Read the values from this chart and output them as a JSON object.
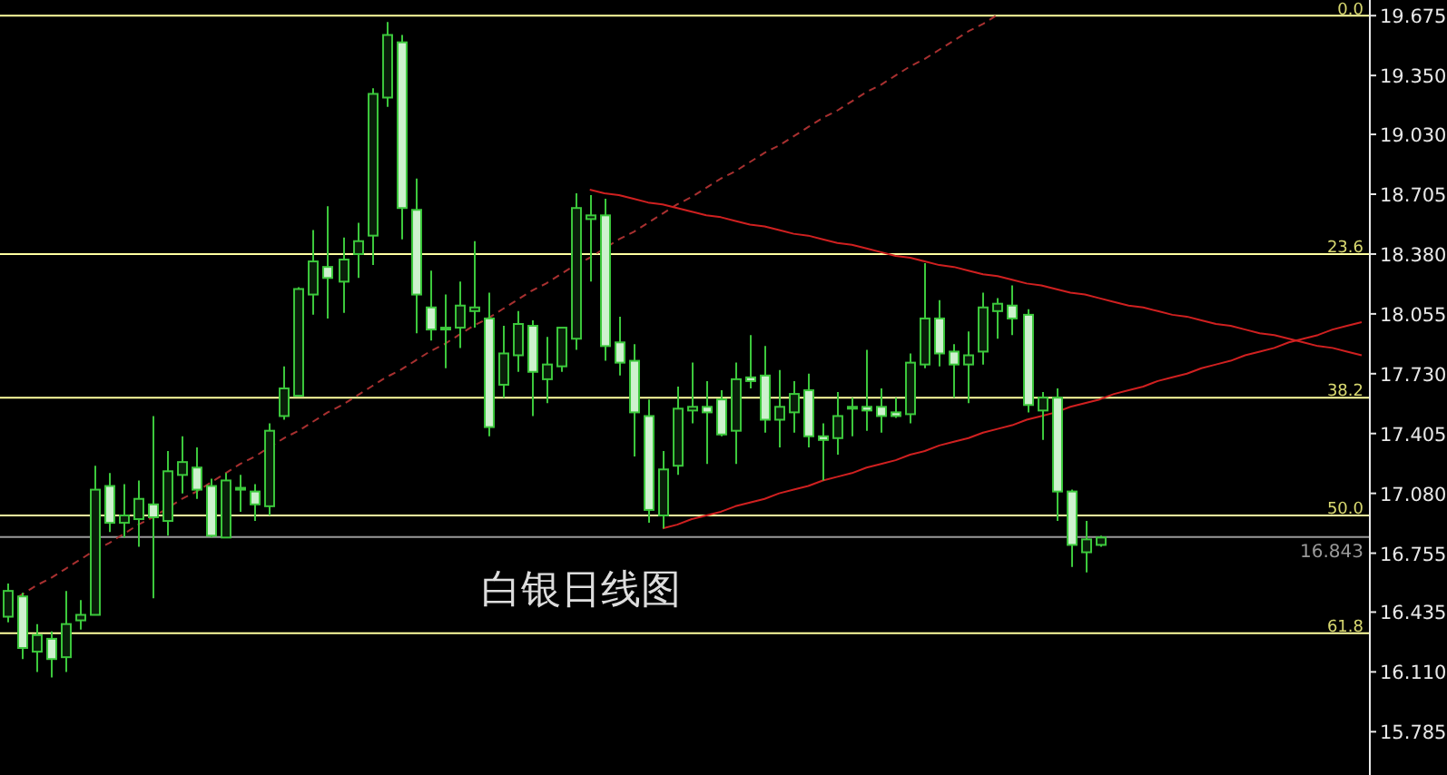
{
  "chart_data": {
    "type": "candlestick",
    "annotations": [
      "白银日线图",
      {
        "text": "0.0",
        "y": 19.675
      },
      {
        "text": "23.6",
        "y": 18.38
      },
      {
        "text": "38.2",
        "y": 17.6
      },
      {
        "text": "50.0",
        "y": 16.96
      },
      {
        "text": "61.8",
        "y": 16.32
      }
    ],
    "categories": [
      null,
      null,
      null,
      null,
      null,
      null,
      null,
      null,
      null,
      null,
      null,
      null,
      null,
      null,
      null,
      null,
      null,
      null,
      null,
      null,
      null,
      null,
      null,
      null,
      null,
      null,
      null,
      null,
      null,
      null,
      null,
      null,
      null,
      null,
      null,
      null,
      null,
      null,
      null,
      null,
      null,
      null,
      null,
      null,
      null,
      null,
      null,
      null,
      null,
      null,
      null,
      null,
      null,
      null,
      null,
      null,
      null,
      null,
      null,
      null,
      null,
      null,
      null,
      null,
      null,
      null,
      null,
      null,
      null,
      null,
      null,
      null,
      null,
      null,
      null,
      null,
      null,
      null,
      null,
      null,
      null,
      null,
      null,
      null,
      null,
      null,
      null,
      null,
      null,
      null,
      null,
      null,
      null,
      null
    ],
    "ylim": [
      15.55,
      19.76
    ],
    "yticks": [
      {
        "value": 19.675,
        "label": "19.675"
      },
      {
        "value": 19.35,
        "label": "19.350"
      },
      {
        "value": 19.03,
        "label": "19.030"
      },
      {
        "value": 18.705,
        "label": "18.705"
      },
      {
        "value": 18.38,
        "label": "18.380"
      },
      {
        "value": 18.055,
        "label": "18.055"
      },
      {
        "value": 17.73,
        "label": "17.730"
      },
      {
        "value": 17.405,
        "label": "17.405"
      },
      {
        "value": 17.08,
        "label": "17.080"
      },
      {
        "value": 16.755,
        "label": "16.755"
      },
      {
        "value": 16.435,
        "label": "16.435"
      },
      {
        "value": 16.11,
        "label": "16.110"
      },
      {
        "value": 15.785,
        "label": "15.785"
      }
    ],
    "tick_labels": "y",
    "series": [
      {
        "type": "candlestick",
        "color": "#3cc83c",
        "ohlc": [
          [
            16.41,
            16.59,
            16.38,
            16.55
          ],
          [
            16.52,
            16.54,
            16.18,
            16.24
          ],
          [
            16.22,
            16.37,
            16.11,
            16.31
          ],
          [
            16.29,
            16.33,
            16.08,
            16.18
          ],
          [
            16.19,
            16.55,
            16.11,
            16.37
          ],
          [
            16.39,
            16.5,
            16.34,
            16.42
          ],
          [
            16.42,
            17.23,
            16.42,
            17.1
          ],
          [
            17.12,
            17.19,
            16.87,
            16.92
          ],
          [
            16.92,
            17.13,
            16.84,
            16.96
          ],
          [
            16.94,
            17.15,
            16.79,
            17.05
          ],
          [
            17.02,
            17.5,
            16.51,
            16.95
          ],
          [
            16.93,
            17.31,
            16.85,
            17.2
          ],
          [
            17.18,
            17.39,
            17.08,
            17.25
          ],
          [
            17.22,
            17.33,
            17.05,
            17.1
          ],
          [
            17.12,
            17.16,
            16.84,
            16.85
          ],
          [
            16.84,
            17.19,
            16.84,
            17.15
          ],
          [
            17.1,
            17.18,
            16.98,
            17.11
          ],
          [
            17.09,
            17.13,
            16.93,
            17.02
          ],
          [
            17.01,
            17.46,
            16.96,
            17.42
          ],
          [
            17.5,
            17.77,
            17.48,
            17.65
          ],
          [
            17.61,
            18.2,
            17.61,
            18.19
          ],
          [
            18.16,
            18.51,
            18.05,
            18.34
          ],
          [
            18.31,
            18.64,
            18.03,
            18.25
          ],
          [
            18.23,
            18.47,
            18.06,
            18.35
          ],
          [
            18.38,
            18.55,
            18.25,
            18.45
          ],
          [
            18.48,
            19.28,
            18.32,
            19.25
          ],
          [
            19.23,
            19.64,
            19.18,
            19.57
          ],
          [
            19.53,
            19.57,
            18.46,
            18.63
          ],
          [
            18.62,
            18.79,
            17.95,
            18.16
          ],
          [
            18.09,
            18.29,
            17.91,
            17.97
          ],
          [
            17.98,
            18.16,
            17.76,
            17.97
          ],
          [
            17.98,
            18.23,
            17.87,
            18.1
          ],
          [
            18.07,
            18.45,
            17.98,
            18.09
          ],
          [
            18.03,
            18.17,
            17.39,
            17.44
          ],
          [
            17.67,
            17.99,
            17.6,
            17.84
          ],
          [
            17.83,
            18.07,
            17.74,
            18.0
          ],
          [
            17.99,
            18.02,
            17.5,
            17.74
          ],
          [
            17.7,
            17.93,
            17.57,
            17.78
          ],
          [
            17.77,
            17.98,
            17.74,
            17.98
          ],
          [
            17.92,
            18.71,
            17.86,
            18.63
          ],
          [
            18.57,
            18.7,
            18.23,
            18.59
          ],
          [
            18.59,
            18.68,
            17.8,
            17.88
          ],
          [
            17.9,
            18.04,
            17.72,
            17.79
          ],
          [
            17.8,
            17.89,
            17.28,
            17.52
          ],
          [
            17.5,
            17.59,
            16.92,
            16.99
          ],
          [
            16.96,
            17.31,
            16.89,
            17.21
          ],
          [
            17.23,
            17.66,
            17.18,
            17.54
          ],
          [
            17.53,
            17.79,
            17.46,
            17.55
          ],
          [
            17.55,
            17.69,
            17.24,
            17.52
          ],
          [
            17.59,
            17.64,
            17.39,
            17.4
          ],
          [
            17.42,
            17.79,
            17.24,
            17.7
          ],
          [
            17.71,
            17.94,
            17.65,
            17.69
          ],
          [
            17.72,
            17.88,
            17.41,
            17.48
          ],
          [
            17.48,
            17.75,
            17.33,
            17.55
          ],
          [
            17.52,
            17.69,
            17.41,
            17.62
          ],
          [
            17.64,
            17.73,
            17.33,
            17.39
          ],
          [
            17.39,
            17.46,
            17.15,
            17.37
          ],
          [
            17.38,
            17.63,
            17.29,
            17.5
          ],
          [
            17.54,
            17.6,
            17.39,
            17.55
          ],
          [
            17.55,
            17.86,
            17.42,
            17.53
          ],
          [
            17.55,
            17.65,
            17.41,
            17.5
          ],
          [
            17.52,
            17.6,
            17.49,
            17.5
          ],
          [
            17.51,
            17.84,
            17.46,
            17.79
          ],
          [
            17.78,
            18.33,
            17.76,
            18.03
          ],
          [
            18.03,
            18.13,
            17.77,
            17.84
          ],
          [
            17.85,
            17.89,
            17.6,
            17.78
          ],
          [
            17.78,
            17.96,
            17.57,
            17.83
          ],
          [
            17.85,
            18.17,
            17.78,
            18.09
          ],
          [
            18.07,
            18.14,
            17.92,
            18.11
          ],
          [
            18.1,
            18.21,
            17.94,
            18.03
          ],
          [
            18.05,
            18.08,
            17.52,
            17.56
          ],
          [
            17.53,
            17.63,
            17.37,
            17.6
          ],
          [
            17.6,
            17.65,
            16.93,
            17.09
          ],
          [
            17.09,
            17.1,
            16.68,
            16.8
          ],
          [
            16.76,
            16.93,
            16.65,
            16.83
          ],
          [
            16.8,
            16.85,
            16.79,
            16.84
          ],
          null,
          null,
          null,
          null,
          null,
          null,
          null,
          null,
          null,
          null,
          null,
          null,
          null,
          null,
          null,
          null,
          null,
          null
        ]
      },
      {
        "type": "line",
        "color": "#a83030",
        "line_style": "dashed",
        "values": [
          16.48,
          16.53,
          16.58,
          16.62,
          16.67,
          16.72,
          16.77,
          16.81,
          16.86,
          16.91,
          16.95,
          17.0,
          17.05,
          17.09,
          17.14,
          17.19,
          17.24,
          17.28,
          17.33,
          17.38,
          17.42,
          17.47,
          17.52,
          17.56,
          17.61,
          17.66,
          17.71,
          17.75,
          17.8,
          17.85,
          17.89,
          17.94,
          17.99,
          18.03,
          18.08,
          18.13,
          18.18,
          18.22,
          18.27,
          18.32,
          18.36,
          18.41,
          18.46,
          18.5,
          18.55,
          18.6,
          18.65,
          18.69,
          18.74,
          18.79,
          18.83,
          18.88,
          18.93,
          18.97,
          19.02,
          19.07,
          19.12,
          19.16,
          19.21,
          19.26,
          19.3,
          19.35,
          19.4,
          19.44,
          19.49,
          19.54,
          19.59,
          19.63,
          19.68,
          null,
          null,
          null,
          null,
          null,
          null,
          null,
          null,
          null,
          null,
          null,
          null,
          null,
          null,
          null,
          null,
          null,
          null,
          null,
          null,
          null,
          null,
          null,
          null,
          null
        ]
      },
      {
        "type": "line",
        "color": "#d02020",
        "line_style": "solid",
        "values": [
          null,
          null,
          null,
          null,
          null,
          null,
          null,
          null,
          null,
          null,
          null,
          null,
          null,
          null,
          null,
          null,
          null,
          null,
          null,
          null,
          null,
          null,
          null,
          null,
          null,
          null,
          null,
          null,
          null,
          null,
          null,
          null,
          null,
          null,
          null,
          null,
          null,
          null,
          null,
          null,
          18.73,
          18.71,
          18.7,
          18.68,
          18.66,
          18.65,
          18.63,
          18.61,
          18.59,
          18.58,
          18.56,
          18.54,
          18.53,
          18.51,
          18.49,
          18.48,
          18.46,
          18.44,
          18.43,
          18.41,
          18.39,
          18.37,
          18.36,
          18.34,
          18.32,
          18.31,
          18.29,
          18.27,
          18.26,
          18.24,
          18.22,
          18.21,
          18.19,
          18.17,
          18.16,
          18.14,
          18.12,
          18.1,
          18.09,
          18.07,
          18.05,
          18.04,
          18.02,
          18.0,
          17.99,
          17.97,
          17.95,
          17.94,
          17.92,
          17.9,
          17.88,
          17.87,
          17.85,
          17.83
        ]
      },
      {
        "type": "line",
        "color": "#d02020",
        "line_style": "solid",
        "values": [
          null,
          null,
          null,
          null,
          null,
          null,
          null,
          null,
          null,
          null,
          null,
          null,
          null,
          null,
          null,
          null,
          null,
          null,
          null,
          null,
          null,
          null,
          null,
          null,
          null,
          null,
          null,
          null,
          null,
          null,
          null,
          null,
          null,
          null,
          null,
          null,
          null,
          null,
          null,
          null,
          null,
          null,
          null,
          null,
          null,
          16.89,
          16.91,
          16.94,
          16.96,
          16.98,
          17.01,
          17.03,
          17.05,
          17.08,
          17.1,
          17.12,
          17.15,
          17.17,
          17.19,
          17.22,
          17.24,
          17.26,
          17.29,
          17.31,
          17.34,
          17.36,
          17.38,
          17.41,
          17.43,
          17.45,
          17.48,
          17.5,
          17.52,
          17.55,
          17.57,
          17.59,
          17.62,
          17.64,
          17.66,
          17.69,
          17.71,
          17.73,
          17.76,
          17.78,
          17.8,
          17.83,
          17.85,
          17.87,
          17.9,
          17.92,
          17.94,
          17.97,
          17.99,
          18.01
        ]
      }
    ],
    "ref_lines": [
      {
        "axis": "y",
        "value": 19.675,
        "color": "#ffffa0"
      },
      {
        "axis": "y",
        "value": 18.38,
        "color": "#ffffa0"
      },
      {
        "axis": "y",
        "value": 17.6,
        "color": "#ffffa0"
      },
      {
        "axis": "y",
        "value": 16.96,
        "color": "#ffffa0"
      },
      {
        "axis": "y",
        "value": 16.843,
        "label": "16.843",
        "color": "#9a9a9a"
      },
      {
        "axis": "y",
        "value": 16.32,
        "color": "#ffffa0"
      }
    ]
  }
}
